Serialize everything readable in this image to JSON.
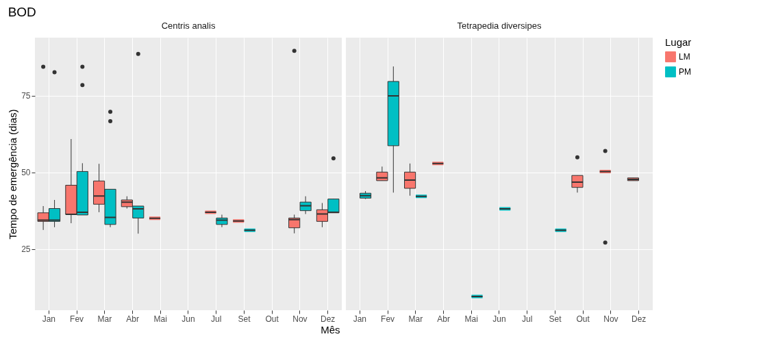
{
  "chart_data": [
    {
      "type": "box",
      "title": "BOD",
      "subtitle": "Centris analis",
      "xlabel": "Mês",
      "ylabel": "Tempo de emergência (dias)",
      "categories": [
        "Jan",
        "Fev",
        "Mar",
        "Abr",
        "Mai",
        "Jun",
        "Jul",
        "Set",
        "Out",
        "Nov",
        "Dez"
      ],
      "ylim": [
        5,
        94
      ],
      "yticks": [
        25,
        50,
        75
      ],
      "grid": true,
      "legend": "right",
      "series": [
        {
          "name": "LM",
          "color": "#f8766d",
          "boxes": [
            {
              "low": 31.2,
              "q1": 34,
              "median": 34.4,
              "q3": 36.8,
              "high": 39,
              "outliers": [
                84.5
              ]
            },
            {
              "low": 33.4,
              "q1": 36.3,
              "median": 36.3,
              "q3": 45.8,
              "high": 60.9
            },
            {
              "low": 37,
              "q1": 39.6,
              "median": 42.3,
              "q3": 47.2,
              "high": 52.8
            },
            {
              "low": 38.2,
              "q1": 38.8,
              "median": 40.3,
              "q3": 41,
              "high": 42.2
            },
            {
              "low": 35,
              "q1": 35,
              "median": 35,
              "q3": 35,
              "high": 35
            },
            null,
            {
              "low": 37,
              "q1": 37,
              "median": 37,
              "q3": 37,
              "high": 37
            },
            {
              "low": 34.1,
              "q1": 34.1,
              "median": 34.1,
              "q3": 34.1,
              "high": 34.1
            },
            null,
            {
              "low": 30.1,
              "q1": 31.9,
              "median": 34.6,
              "q3": 35.1,
              "high": 36.2,
              "outliers": [
                89.7
              ]
            },
            {
              "low": 32.1,
              "q1": 34,
              "median": 36.4,
              "q3": 37.8,
              "high": 40
            }
          ]
        },
        {
          "name": "PM",
          "color": "#00bfc4",
          "boxes": [
            {
              "low": 32.1,
              "q1": 34,
              "median": 34.4,
              "q3": 38.2,
              "high": 41,
              "outliers": [
                82.7
              ]
            },
            {
              "low": 36.1,
              "q1": 36.1,
              "median": 37,
              "q3": 50.3,
              "high": 53,
              "outliers": [
                84.5,
                78.5
              ]
            },
            {
              "low": 32.1,
              "q1": 33,
              "median": 35.3,
              "q3": 44.5,
              "high": 44.5,
              "outliers": [
                69.8,
                66.7
              ]
            },
            {
              "low": 30,
              "q1": 35.1,
              "median": 38.1,
              "q3": 39,
              "high": 39,
              "outliers": [
                88.7
              ]
            },
            null,
            null,
            {
              "low": 32.1,
              "q1": 33,
              "median": 34.4,
              "q3": 35.1,
              "high": 36.2
            },
            {
              "low": 31.1,
              "q1": 31.1,
              "median": 31.1,
              "q3": 31.1,
              "high": 31.1
            },
            null,
            {
              "low": 36.4,
              "q1": 37.5,
              "median": 39.1,
              "q3": 40.3,
              "high": 42.2
            },
            {
              "low": 36.8,
              "q1": 36.8,
              "median": 37,
              "q3": 41.3,
              "high": 41.3,
              "outliers": [
                54.6
              ]
            }
          ]
        }
      ]
    },
    {
      "type": "box",
      "subtitle": "Tetrapedia diversipes",
      "legend_title": "Lugar",
      "categories": [
        "Jan",
        "Fev",
        "Mar",
        "Abr",
        "Mai",
        "Jun",
        "Jul",
        "Set",
        "Out",
        "Nov",
        "Dez"
      ],
      "ylim": [
        5,
        94
      ],
      "yticks": [
        25,
        50,
        75
      ],
      "grid": true,
      "legend": "right",
      "tick_labels": "x",
      "series": [
        {
          "name": "LM",
          "color": "#f8766d",
          "boxes": [
            null,
            {
              "low": 47.3,
              "q1": 47.3,
              "median": 48.2,
              "q3": 50.1,
              "high": 51.9
            },
            {
              "low": 42.4,
              "q1": 44.8,
              "median": 47.5,
              "q3": 50.1,
              "high": 52.9
            },
            {
              "low": 52.9,
              "q1": 52.9,
              "median": 52.9,
              "q3": 52.9,
              "high": 52.9
            },
            null,
            null,
            null,
            null,
            {
              "low": 43.4,
              "q1": 45.1,
              "median": 46.8,
              "q3": 49,
              "high": 49,
              "outliers": [
                54.9
              ]
            },
            {
              "low": 50.3,
              "q1": 50.3,
              "median": 50.3,
              "q3": 50.3,
              "high": 50.3,
              "outliers": [
                57,
                27.1
              ]
            },
            {
              "low": 47.3,
              "q1": 47.3,
              "median": 47.7,
              "q3": 48.2,
              "high": 48.2
            }
          ]
        },
        {
          "name": "PM",
          "color": "#00bfc4",
          "boxes": [
            {
              "low": 41.3,
              "q1": 41.6,
              "median": 42.4,
              "q3": 43.2,
              "high": 43.9
            },
            {
              "low": 43.4,
              "q1": 58.7,
              "median": 75,
              "q3": 79.7,
              "high": 84.6
            },
            {
              "low": 42.2,
              "q1": 42.2,
              "median": 42.2,
              "q3": 42.2,
              "high": 42.2
            },
            null,
            {
              "low": 9.5,
              "q1": 9.5,
              "median": 9.5,
              "q3": 9.5,
              "high": 9.5
            },
            {
              "low": 38.1,
              "q1": 38.1,
              "median": 38.1,
              "q3": 38.1,
              "high": 38.1
            },
            null,
            {
              "low": 31.1,
              "q1": 31.1,
              "median": 31.1,
              "q3": 31.1,
              "high": 31.1
            },
            null,
            null,
            null
          ]
        }
      ]
    }
  ]
}
